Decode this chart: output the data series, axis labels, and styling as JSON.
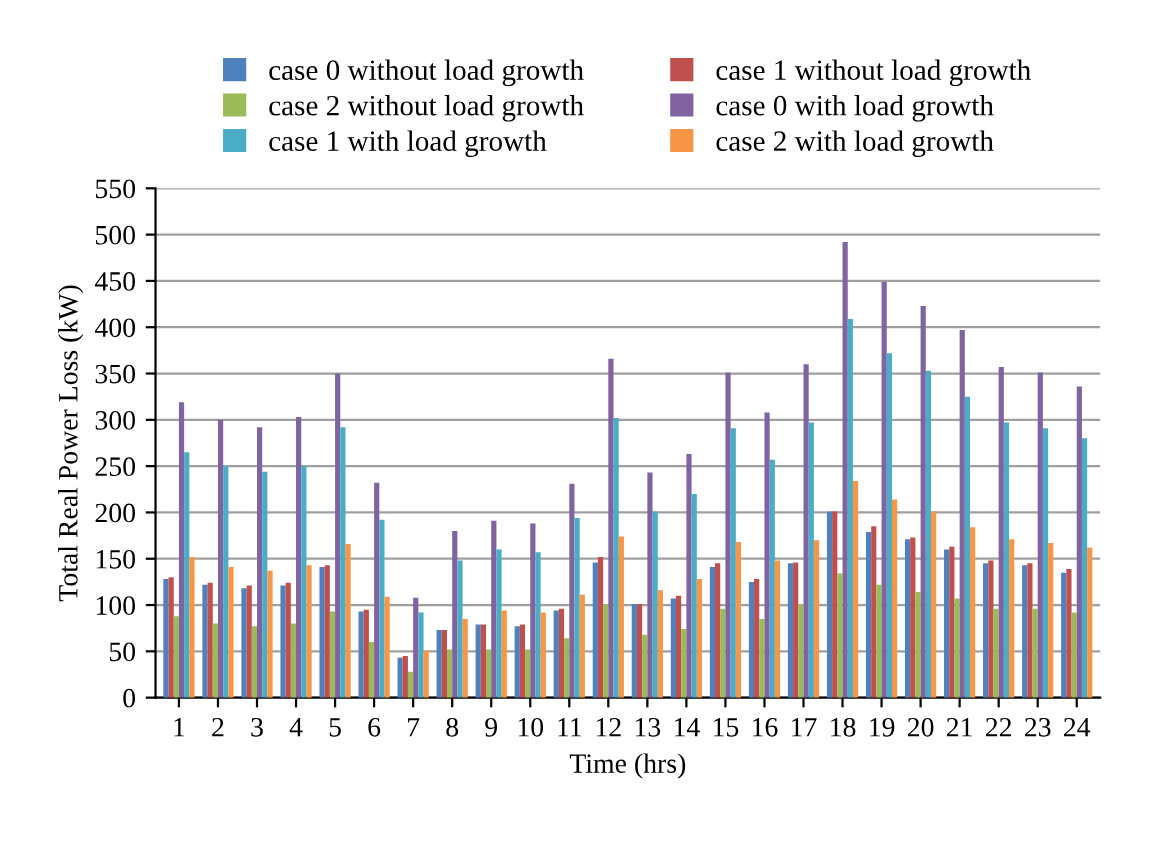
{
  "chart_data": {
    "type": "bar",
    "xlabel": "Time (hrs)",
    "ylabel": "Total Real Power Loss (kW)",
    "categories": [
      "1",
      "2",
      "3",
      "4",
      "5",
      "6",
      "7",
      "8",
      "9",
      "10",
      "11",
      "12",
      "13",
      "14",
      "15",
      "16",
      "17",
      "18",
      "19",
      "20",
      "21",
      "22",
      "23",
      "24"
    ],
    "series": [
      {
        "name": "case 0 without load growth",
        "color": "#4f81bd",
        "values": [
          128,
          122,
          118,
          121,
          141,
          93,
          43,
          73,
          79,
          77,
          94,
          146,
          101,
          107,
          141,
          125,
          145,
          201,
          179,
          171,
          160,
          145,
          143,
          135
        ]
      },
      {
        "name": "case 1 without load growth",
        "color": "#c0504d",
        "values": [
          130,
          124,
          121,
          124,
          143,
          95,
          45,
          73,
          79,
          79,
          96,
          152,
          101,
          110,
          145,
          128,
          146,
          201,
          185,
          173,
          163,
          148,
          145,
          139
        ]
      },
      {
        "name": "case 2 without load growth",
        "color": "#9bbb59",
        "values": [
          88,
          80,
          77,
          80,
          93,
          60,
          28,
          52,
          52,
          52,
          64,
          101,
          68,
          74,
          96,
          85,
          101,
          134,
          122,
          114,
          107,
          96,
          96,
          92
        ]
      },
      {
        "name": "case 0 with load growth",
        "color": "#8064a2",
        "values": [
          319,
          300,
          292,
          303,
          350,
          232,
          108,
          180,
          191,
          188,
          231,
          366,
          243,
          263,
          351,
          308,
          360,
          492,
          449,
          423,
          397,
          357,
          351,
          336
        ]
      },
      {
        "name": "case 1 with load growth",
        "color": "#4bacc6",
        "values": [
          265,
          250,
          244,
          250,
          292,
          192,
          92,
          148,
          160,
          157,
          194,
          302,
          201,
          220,
          291,
          257,
          297,
          409,
          372,
          353,
          325,
          297,
          291,
          280
        ]
      },
      {
        "name": "case 2 with load growth",
        "color": "#f79646",
        "values": [
          152,
          141,
          137,
          143,
          166,
          109,
          51,
          85,
          94,
          92,
          111,
          174,
          116,
          128,
          168,
          148,
          170,
          234,
          214,
          201,
          184,
          171,
          167,
          162
        ]
      }
    ],
    "ylim": [
      0,
      550
    ],
    "yticks": [
      0,
      50,
      100,
      150,
      200,
      250,
      300,
      350,
      400,
      450,
      500,
      550
    ],
    "grid": "y",
    "legend": "top"
  }
}
